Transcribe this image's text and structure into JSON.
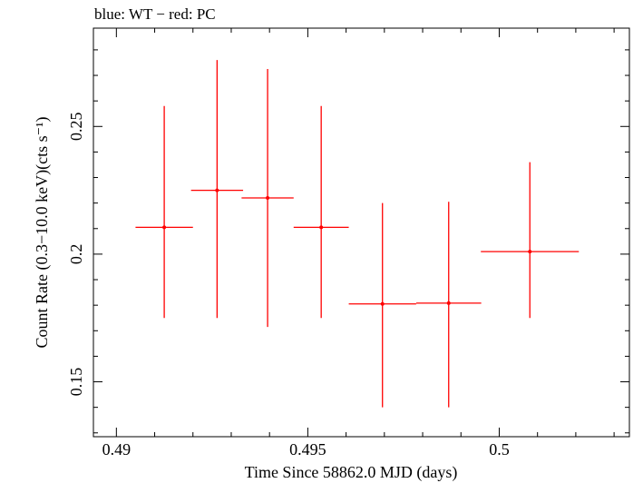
{
  "chart_data": {
    "type": "scatter",
    "title": "blue: WT − red: PC",
    "xlabel": "Time Since 58862.0 MJD (days)",
    "ylabel": "Count Rate (0.3−10.0 keV)(cts s⁻¹)",
    "xlim": [
      0.4894,
      0.5034
    ],
    "ylim": [
      0.1285,
      0.2885
    ],
    "x_ticks": [
      0.49,
      0.495,
      0.5
    ],
    "x_tick_labels": [
      "0.49",
      "0.495",
      "0.5"
    ],
    "y_ticks": [
      0.15,
      0.2,
      0.25
    ],
    "y_tick_labels": [
      "0.15",
      "0.2",
      "0.25"
    ],
    "grid": false,
    "series": [
      {
        "name": "PC",
        "color": "#ff0000",
        "points": [
          {
            "x": 0.49125,
            "y": 0.2105,
            "xerr": 0.00075,
            "yerr_low": 0.0355,
            "yerr_high": 0.0475
          },
          {
            "x": 0.49263,
            "y": 0.225,
            "xerr": 0.00068,
            "yerr_low": 0.05,
            "yerr_high": 0.051
          },
          {
            "x": 0.49395,
            "y": 0.222,
            "xerr": 0.00068,
            "yerr_low": 0.0505,
            "yerr_high": 0.0505
          },
          {
            "x": 0.49535,
            "y": 0.2105,
            "xerr": 0.00072,
            "yerr_low": 0.0355,
            "yerr_high": 0.0475
          },
          {
            "x": 0.49695,
            "y": 0.1805,
            "xerr": 0.00088,
            "yerr_low": 0.0405,
            "yerr_high": 0.0395
          },
          {
            "x": 0.49868,
            "y": 0.1808,
            "xerr": 0.00085,
            "yerr_low": 0.0408,
            "yerr_high": 0.0397
          },
          {
            "x": 0.5008,
            "y": 0.201,
            "xerr": 0.00128,
            "yerr_low": 0.026,
            "yerr_high": 0.035
          }
        ]
      }
    ]
  }
}
